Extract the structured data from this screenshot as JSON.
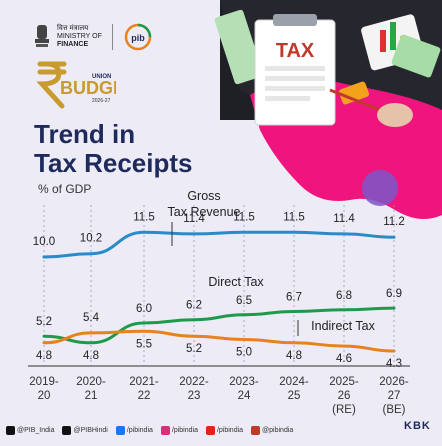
{
  "header": {
    "ministry_hindi": "वित्त मंत्रालय",
    "ministry_line1": "MINISTRY OF",
    "ministry_line2": "FINANCE",
    "pib": "pib",
    "budget_union": "UNION",
    "budget_word": "BUDGET",
    "budget_year": "2026-27"
  },
  "illustration": {
    "tax_word": "TAX"
  },
  "title_line1": "Trend in",
  "title_line2": "Tax Receipts",
  "subtitle": "% of GDP",
  "chart_data": {
    "type": "line",
    "categories": [
      "2019-20",
      "2020-21",
      "2021-22",
      "2022-23",
      "2023-24",
      "2024-25",
      "2025-26 (RE)",
      "2026-27 (BE)"
    ],
    "category_lines": [
      [
        "2019-",
        "20",
        ""
      ],
      [
        "2020-",
        "21",
        ""
      ],
      [
        "2021-",
        "22",
        ""
      ],
      [
        "2022-",
        "23",
        ""
      ],
      [
        "2023-",
        "24",
        ""
      ],
      [
        "2024-",
        "25",
        ""
      ],
      [
        "2025-",
        "26",
        "(RE)"
      ],
      [
        "2026-",
        "27",
        "(BE)"
      ]
    ],
    "series": [
      {
        "name": "Gross Tax Revenue",
        "name_lines": [
          "Gross",
          "Tax Revenue"
        ],
        "color": "#2b8ac8",
        "values": [
          10.0,
          10.2,
          11.5,
          11.4,
          11.5,
          11.5,
          11.4,
          11.2
        ]
      },
      {
        "name": "Direct Tax",
        "name_lines": [
          "Direct Tax"
        ],
        "color": "#1f9a4a",
        "values": [
          5.2,
          4.8,
          6.0,
          6.2,
          6.5,
          6.7,
          6.8,
          6.9
        ]
      },
      {
        "name": "Indirect Tax",
        "name_lines": [
          "Indirect Tax"
        ],
        "color": "#e8821e",
        "values": [
          4.8,
          5.4,
          5.5,
          5.2,
          5.0,
          4.8,
          4.6,
          4.3
        ]
      }
    ]
  },
  "footer": {
    "items": [
      {
        "icon": "x-icon",
        "color": "#111111",
        "text": "@PIB_India"
      },
      {
        "icon": "x-icon",
        "color": "#111111",
        "text": "@PIBHindi"
      },
      {
        "icon": "facebook-icon",
        "color": "#1877f2",
        "text": "/pibindia"
      },
      {
        "icon": "instagram-icon",
        "color": "#d6307a",
        "text": "/pibindia"
      },
      {
        "icon": "youtube-icon",
        "color": "#e62117",
        "text": "/pibindia"
      },
      {
        "icon": "kooapp-icon",
        "color": "#c0392b",
        "text": "@pibindia"
      }
    ],
    "credit": "KBK"
  }
}
